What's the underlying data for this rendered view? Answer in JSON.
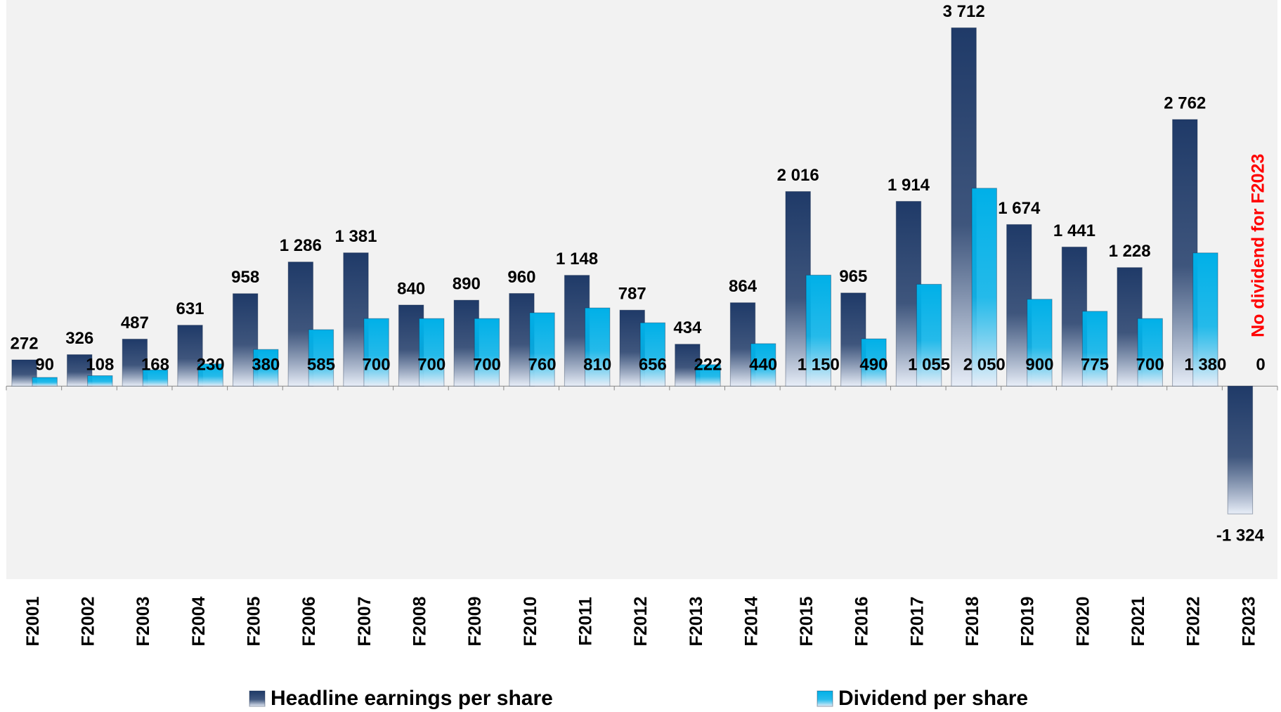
{
  "chart_data": {
    "type": "bar",
    "categories": [
      "F2001",
      "F2002",
      "F2003",
      "F2004",
      "F2005",
      "F2006",
      "F2007",
      "F2008",
      "F2009",
      "F2010",
      "F2011",
      "F2012",
      "F2013",
      "F2014",
      "F2015",
      "F2016",
      "F2017",
      "F2018",
      "F2019",
      "F2020",
      "F2021",
      "F2022",
      "F2023"
    ],
    "series": [
      {
        "name": "Headline earnings per share",
        "color": "#1f3a68",
        "values": [
          272,
          326,
          487,
          631,
          958,
          1286,
          1381,
          840,
          890,
          960,
          1148,
          787,
          434,
          864,
          2016,
          965,
          1914,
          3712,
          1674,
          1441,
          1228,
          2762,
          -1324
        ],
        "value_labels": [
          "272",
          "326",
          "487",
          "631",
          "958",
          "1 286",
          "1 381",
          "840",
          "890",
          "960",
          "1 148",
          "787",
          "434",
          "864",
          "2 016",
          "965",
          "1 914",
          "3 712",
          "1 674",
          "1 441",
          "1 228",
          "2 762",
          "-1 324"
        ]
      },
      {
        "name": "Dividend per share",
        "color": "#00b0e8",
        "values": [
          90,
          108,
          168,
          230,
          380,
          585,
          700,
          700,
          700,
          760,
          810,
          656,
          222,
          440,
          1150,
          490,
          1055,
          2050,
          900,
          775,
          700,
          1380,
          0
        ],
        "value_labels": [
          "90",
          "108",
          "168",
          "230",
          "380",
          "585",
          "700",
          "700",
          "700",
          "760",
          "810",
          "656",
          "222",
          "440",
          "1 150",
          "490",
          "1 055",
          "2 050",
          "900",
          "775",
          "700",
          "1 380",
          "0"
        ]
      }
    ],
    "annotations": [
      "No dividend for F2023"
    ],
    "annotation_color": "#ff0000",
    "ylim": [
      -2000,
      4000
    ],
    "background": "#f2f2f2"
  }
}
